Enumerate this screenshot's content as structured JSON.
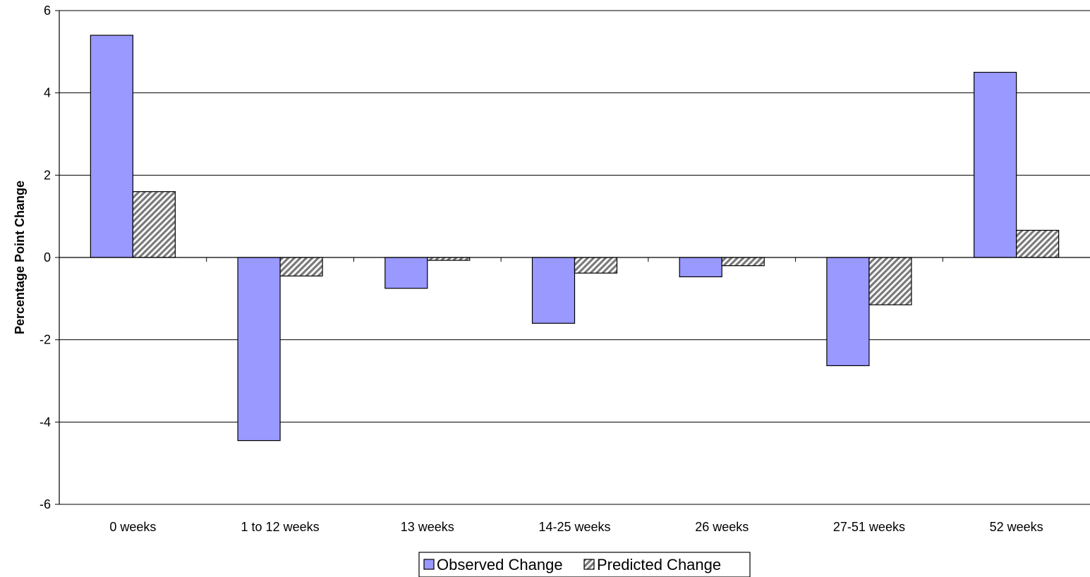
{
  "chart_data": {
    "type": "bar",
    "title": "",
    "xlabel": "",
    "ylabel": "Percentage Point Change",
    "categories": [
      "0 weeks",
      "1 to 12 weeks",
      "13 weeks",
      "14-25 weeks",
      "26 weeks",
      "27-51 weeks",
      "52 weeks"
    ],
    "series": [
      {
        "name": "Observed Change",
        "values": [
          5.4,
          -4.45,
          -0.75,
          -1.6,
          -0.47,
          -2.63,
          4.5
        ],
        "color": "#9999ff",
        "pattern": "solid"
      },
      {
        "name": "Predicted Change",
        "values": [
          1.6,
          -0.45,
          -0.07,
          -0.38,
          -0.2,
          -1.15,
          0.66
        ],
        "color": "#a0a0a0",
        "pattern": "diagonal-hatch"
      }
    ],
    "ylim": [
      -6,
      6
    ],
    "yticks": [
      6,
      4,
      2,
      0,
      -2,
      -4,
      -6
    ],
    "grid": true,
    "legend_position": "bottom-center"
  }
}
